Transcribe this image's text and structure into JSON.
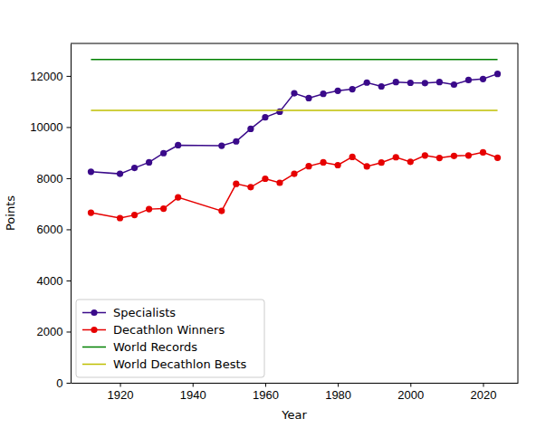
{
  "chart_data": {
    "type": "line",
    "x_label": "Year",
    "y_label": "Points",
    "x": [
      1912,
      1920,
      1924,
      1928,
      1932,
      1936,
      1948,
      1952,
      1956,
      1960,
      1964,
      1968,
      1972,
      1976,
      1980,
      1984,
      1988,
      1992,
      1996,
      2000,
      2004,
      2008,
      2012,
      2016,
      2020,
      2024
    ],
    "series": [
      {
        "name": "Specialists",
        "color": "#3a0a8a",
        "marker": "circle",
        "values": [
          8250,
          8170,
          8400,
          8620,
          8980,
          9290,
          9270,
          9440,
          9930,
          10380,
          10600,
          11320,
          11130,
          11300,
          11420,
          11480,
          11740,
          11590,
          11760,
          11730,
          11720,
          11760,
          11660,
          11840,
          11880,
          12080
        ]
      },
      {
        "name": "Decathlon Winners",
        "color": "#e60000",
        "marker": "circle",
        "values": [
          6650,
          6440,
          6560,
          6790,
          6810,
          7250,
          6720,
          7780,
          7650,
          7980,
          7820,
          8170,
          8470,
          8620,
          8510,
          8830,
          8460,
          8610,
          8820,
          8640,
          8890,
          8790,
          8870,
          8890,
          9010,
          8800
        ]
      },
      {
        "name": "World Records",
        "color": "#008000",
        "marker": "none",
        "values": [
          12640,
          12640,
          12640,
          12640,
          12640,
          12640,
          12640,
          12640,
          12640,
          12640,
          12640,
          12640,
          12640,
          12640,
          12640,
          12640,
          12640,
          12640,
          12640,
          12640,
          12640,
          12640,
          12640,
          12640,
          12640,
          12640
        ]
      },
      {
        "name": "World Decathlon Bests",
        "color": "#bfbf00",
        "marker": "none",
        "values": [
          10650,
          10650,
          10650,
          10650,
          10650,
          10650,
          10650,
          10650,
          10650,
          10650,
          10650,
          10650,
          10650,
          10650,
          10650,
          10650,
          10650,
          10650,
          10650,
          10650,
          10650,
          10650,
          10650,
          10650,
          10650,
          10650
        ]
      }
    ],
    "xlim": [
      1906.4,
      2029.6
    ],
    "ylim": [
      0,
      13270
    ],
    "xticks": [
      1920,
      1940,
      1960,
      1980,
      2000,
      2020
    ],
    "yticks": [
      0,
      2000,
      4000,
      6000,
      8000,
      10000,
      12000
    ],
    "grid": false,
    "legend": "lower left"
  }
}
